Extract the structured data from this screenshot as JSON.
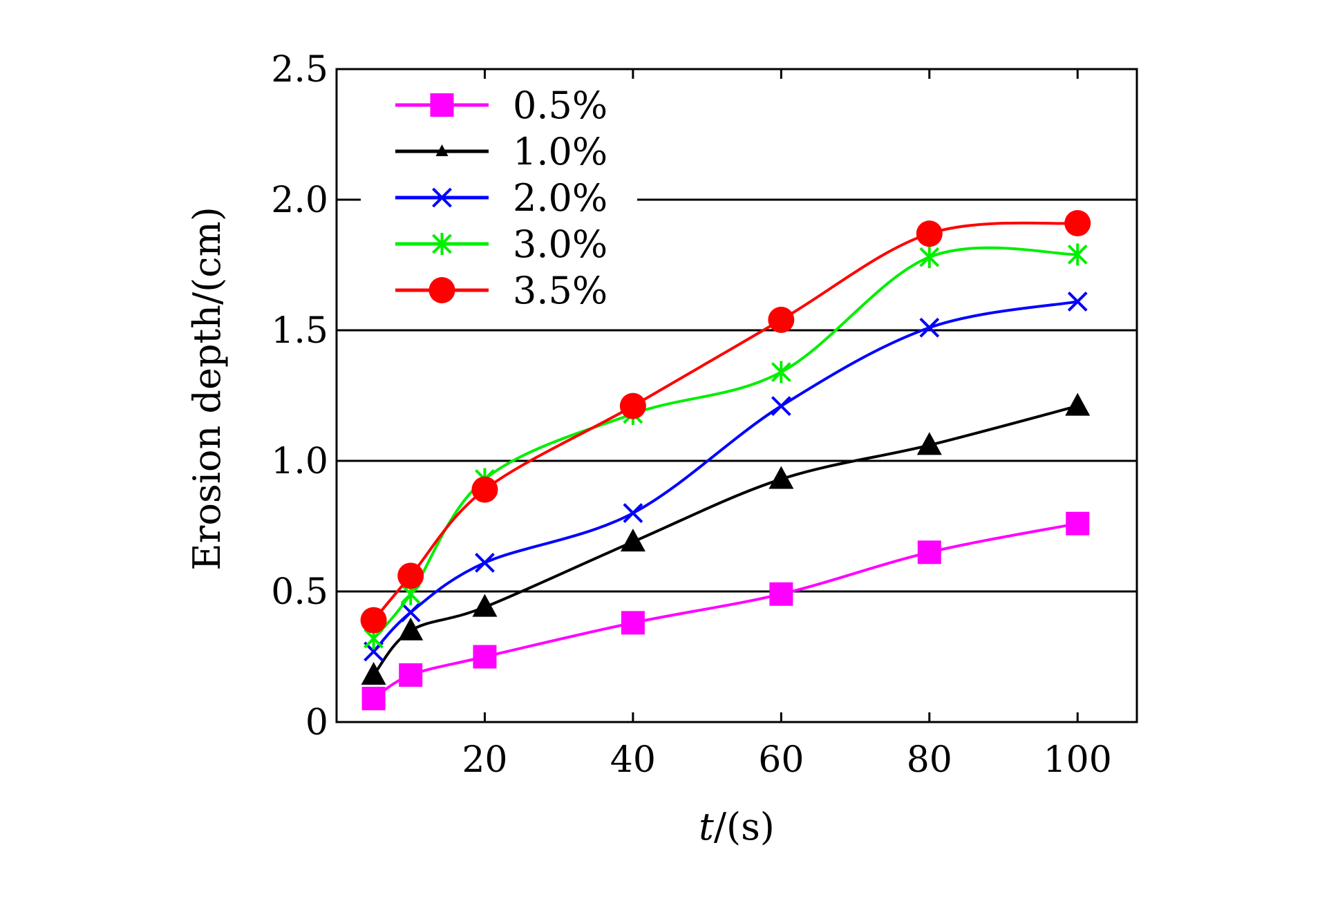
{
  "chart_data": {
    "type": "line",
    "title": "",
    "xlabel_italic": "t",
    "xlabel_rest": "/(s)",
    "ylabel": "Erosion depth/(cm)",
    "xlim": [
      0,
      108
    ],
    "ylim": [
      0,
      2.5
    ],
    "xticks": [
      20,
      40,
      60,
      80,
      100
    ],
    "xtick_labels": [
      "20",
      "40",
      "60",
      "80",
      "100"
    ],
    "yticks": [
      0,
      0.5,
      1.0,
      1.5,
      2.0,
      2.5
    ],
    "ytick_labels": [
      "0",
      "0.5",
      "1.0",
      "1.5",
      "2.0",
      "2.5"
    ],
    "grid": "horizontal",
    "legend_position": "top-left",
    "x": [
      5,
      10,
      20,
      40,
      60,
      80,
      100
    ],
    "series": [
      {
        "name": "0.5%",
        "color": "#ff00ff",
        "marker": "square",
        "values": [
          0.09,
          0.18,
          0.25,
          0.38,
          0.49,
          0.65,
          0.76
        ]
      },
      {
        "name": "1.0%",
        "color": "#000000",
        "marker": "triangle",
        "values": [
          0.18,
          0.35,
          0.44,
          0.69,
          0.93,
          1.06,
          1.21
        ]
      },
      {
        "name": "2.0%",
        "color": "#0000ff",
        "marker": "x",
        "values": [
          0.27,
          0.42,
          0.61,
          0.8,
          1.21,
          1.51,
          1.61
        ]
      },
      {
        "name": "3.0%",
        "color": "#00ee00",
        "marker": "star",
        "values": [
          0.32,
          0.49,
          0.93,
          1.18,
          1.34,
          1.78,
          1.79
        ]
      },
      {
        "name": "3.5%",
        "color": "#ff0000",
        "marker": "circle",
        "values": [
          0.39,
          0.56,
          0.89,
          1.21,
          1.54,
          1.87,
          1.91
        ]
      }
    ]
  }
}
